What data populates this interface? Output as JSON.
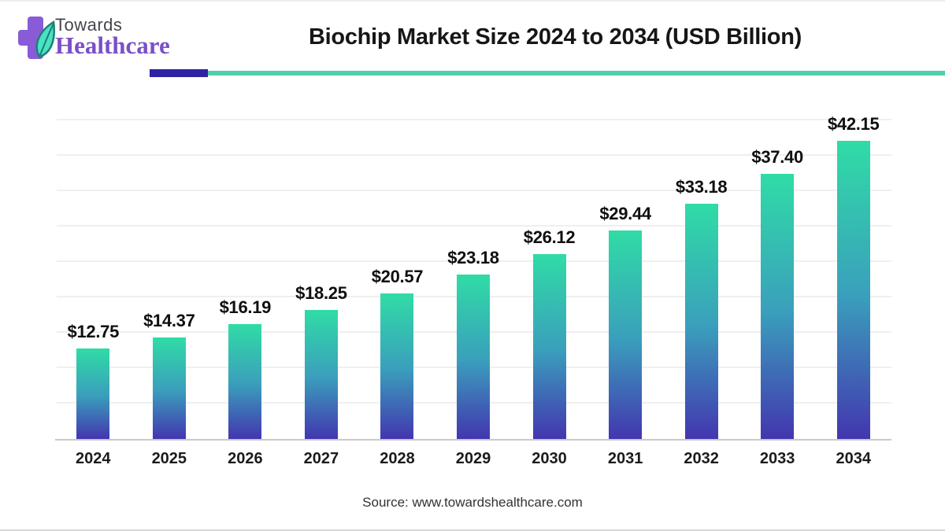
{
  "brand": {
    "name_line1": "Towards",
    "name_line2": "Healthcare"
  },
  "header": {
    "title": "Biochip Market Size 2024 to 2034 (USD Billion)"
  },
  "footer": {
    "source": "Source: www.towardshealthcare.com"
  },
  "colors": {
    "bar_gradient_top": "#30DCA6",
    "bar_gradient_mid": "#3A9FBC",
    "bar_gradient_bottom": "#4336AF",
    "divider_indigo": "#2F22A3",
    "divider_teal": "#4FD0AC",
    "brand_purple": "#7A4FC9",
    "logo_cross_purple": "#8A5BD6",
    "logo_leaf_mint": "#49E2C2",
    "logo_leaf_dark": "#1E7F78",
    "gridline": "#EFEFEF",
    "axis_line": "#C9C9C9"
  },
  "chart_data": {
    "type": "bar",
    "title": "Biochip Market Size 2024 to 2034 (USD Billion)",
    "categories": [
      "2024",
      "2025",
      "2026",
      "2027",
      "2028",
      "2029",
      "2030",
      "2031",
      "2032",
      "2033",
      "2034"
    ],
    "values": [
      12.75,
      14.37,
      16.19,
      18.25,
      20.57,
      23.18,
      26.12,
      29.44,
      33.18,
      37.4,
      42.15
    ],
    "labels": [
      "$12.75",
      "$14.37",
      "$16.19",
      "$18.25",
      "$20.57",
      "$23.18",
      "$26.12",
      "$29.44",
      "$33.18",
      "$37.40",
      "$42.15"
    ],
    "xlabel": "",
    "ylabel": "",
    "ylim": [
      0,
      45
    ],
    "gridline_step": 5,
    "grid": "horizontal",
    "legend": "none"
  }
}
